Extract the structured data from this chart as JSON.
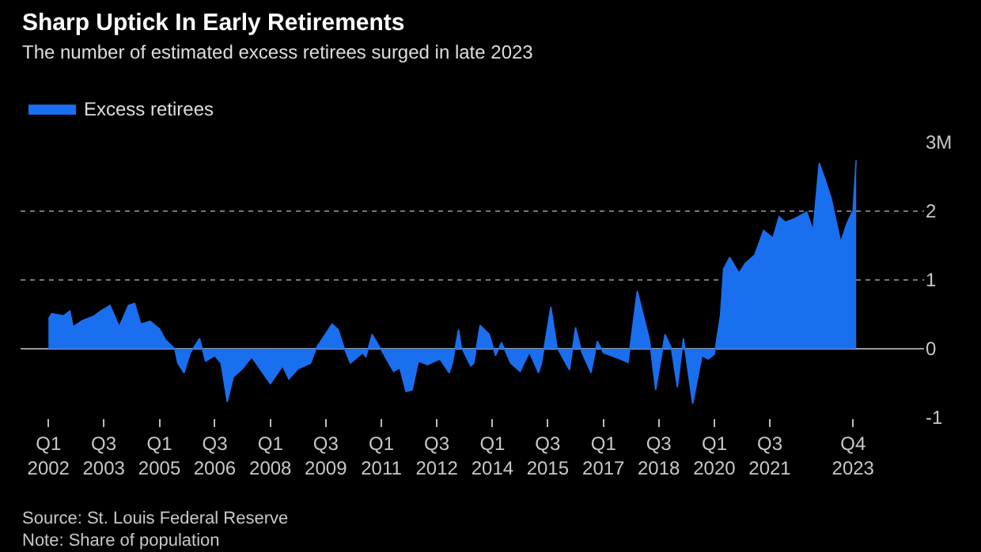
{
  "chart_data": {
    "type": "area",
    "title": "Sharp Uptick In Early Retirements",
    "subtitle": "The number of estimated excess retirees surged in late 2023",
    "x": [
      "2002-01",
      "2002-02",
      "2002-06",
      "2002-08",
      "2002-09",
      "2002-12",
      "2003-04",
      "2003-06",
      "2003-09",
      "2003-12",
      "2004-03",
      "2004-05",
      "2004-07",
      "2004-10",
      "2005-01",
      "2005-03",
      "2005-06",
      "2005-07",
      "2005-09",
      "2005-11",
      "2006-02",
      "2006-04",
      "2006-07",
      "2006-09",
      "2006-11",
      "2007-01",
      "2007-04",
      "2007-07",
      "2008-01",
      "2008-05",
      "2008-07",
      "2008-10",
      "2009-02",
      "2009-04",
      "2009-09",
      "2009-11",
      "2010-01",
      "2010-03",
      "2010-07",
      "2010-08",
      "2010-10",
      "2011-01",
      "2011-05",
      "2011-07",
      "2011-09",
      "2011-11",
      "2012-01",
      "2012-04",
      "2012-08",
      "2012-11",
      "2012-12",
      "2013-02",
      "2013-03",
      "2013-06",
      "2013-07",
      "2013-09",
      "2013-12",
      "2014-02",
      "2014-04",
      "2014-07",
      "2014-10",
      "2015-01",
      "2015-04",
      "2015-05",
      "2015-08",
      "2015-10",
      "2016-02",
      "2016-04",
      "2016-06",
      "2016-09",
      "2016-11",
      "2017-01",
      "2017-06",
      "2017-09",
      "2017-12",
      "2018-04",
      "2018-06",
      "2018-09",
      "2018-11",
      "2019-01",
      "2019-03",
      "2019-06",
      "2019-09",
      "2019-11",
      "2020-01",
      "2020-03",
      "2020-04",
      "2020-06",
      "2020-09",
      "2020-11",
      "2021-02",
      "2021-05",
      "2021-08",
      "2021-10",
      "2021-12",
      "2022-03",
      "2022-07",
      "2022-09",
      "2022-11",
      "2023-01",
      "2023-03",
      "2023-06",
      "2023-08",
      "2023-10",
      "2023-11"
    ],
    "series": [
      {
        "name": "Excess retirees",
        "color": "#1a6fef",
        "values": [
          0.43,
          0.51,
          0.48,
          0.55,
          0.32,
          0.41,
          0.48,
          0.55,
          0.63,
          0.32,
          0.63,
          0.66,
          0.36,
          0.4,
          0.29,
          0.13,
          0.0,
          -0.21,
          -0.35,
          -0.06,
          0.15,
          -0.18,
          -0.1,
          -0.21,
          -0.77,
          -0.41,
          -0.29,
          -0.12,
          -0.51,
          -0.25,
          -0.44,
          -0.29,
          -0.21,
          0.02,
          0.36,
          0.28,
          0.0,
          -0.21,
          -0.06,
          -0.12,
          0.21,
          -0.02,
          -0.33,
          -0.28,
          -0.62,
          -0.6,
          -0.18,
          -0.23,
          -0.15,
          -0.35,
          -0.21,
          0.28,
          0.02,
          -0.25,
          -0.21,
          0.34,
          0.21,
          -0.1,
          0.09,
          -0.21,
          -0.33,
          -0.05,
          -0.35,
          -0.21,
          0.61,
          0.02,
          -0.31,
          0.31,
          -0.05,
          -0.35,
          0.11,
          -0.06,
          -0.14,
          -0.2,
          0.84,
          0.13,
          -0.6,
          0.21,
          0.02,
          -0.56,
          0.15,
          -0.8,
          -0.1,
          -0.15,
          -0.08,
          0.48,
          1.16,
          1.33,
          1.1,
          1.24,
          1.36,
          1.72,
          1.61,
          1.92,
          1.84,
          1.89,
          1.99,
          1.72,
          2.7,
          2.45,
          2.18,
          1.55,
          1.82,
          2.01,
          2.74
        ]
      }
    ],
    "xlim": [
      "2001-04",
      "2025-09"
    ],
    "xticks": [
      {
        "value": "2002-01",
        "label": "Q1\n2002"
      },
      {
        "value": "2003-07",
        "label": "Q3\n2003"
      },
      {
        "value": "2005-01",
        "label": "Q1\n2005"
      },
      {
        "value": "2006-07",
        "label": "Q3\n2006"
      },
      {
        "value": "2008-01",
        "label": "Q1\n2008"
      },
      {
        "value": "2009-07",
        "label": "Q3\n2009"
      },
      {
        "value": "2011-01",
        "label": "Q1\n2011"
      },
      {
        "value": "2012-07",
        "label": "Q3\n2012"
      },
      {
        "value": "2014-01",
        "label": "Q1\n2014"
      },
      {
        "value": "2015-07",
        "label": "Q3\n2015"
      },
      {
        "value": "2017-01",
        "label": "Q1\n2017"
      },
      {
        "value": "2018-07",
        "label": "Q3\n2018"
      },
      {
        "value": "2020-01",
        "label": "Q1\n2020"
      },
      {
        "value": "2021-07",
        "label": "Q3\n2021"
      },
      {
        "value": "2023-10",
        "label": "Q4\n2023"
      }
    ],
    "ylim": [
      -1,
      3
    ],
    "yticks": [
      -1,
      0,
      1,
      2,
      {
        "value": 3,
        "label": "3M"
      }
    ],
    "grid": "y",
    "legend": "top left",
    "annotations": [
      "Source: St. Louis Federal Reserve",
      "Note: Share of population"
    ]
  }
}
